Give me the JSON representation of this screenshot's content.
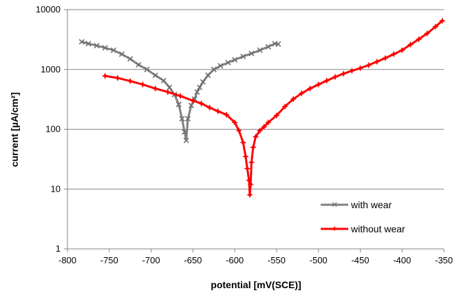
{
  "chart_data": {
    "type": "line",
    "title": "",
    "xlabel": "potential [mV(SCE)]",
    "ylabel": "current [µA/cm²]",
    "xlim": [
      -800,
      -350
    ],
    "ylim": [
      1,
      10000
    ],
    "y_scale": "log",
    "grid": "horizontal",
    "legend_position": "bottom-right",
    "x_ticks": [
      "-800",
      "-750",
      "-700",
      "-650",
      "-600",
      "-550",
      "-500",
      "-450",
      "-400",
      "-350"
    ],
    "y_ticks": [
      "1",
      "10",
      "100",
      "1000",
      "10000"
    ],
    "series": [
      {
        "name": "with wear",
        "color": "#808080",
        "marker": "x",
        "x": [
          -783,
          -775,
          -765,
          -755,
          -745,
          -735,
          -725,
          -715,
          -705,
          -695,
          -685,
          -678,
          -672,
          -667,
          -663,
          -660,
          -658,
          -656,
          -652,
          -648,
          -645,
          -642,
          -638,
          -632,
          -625,
          -617,
          -608,
          -600,
          -590,
          -580,
          -570,
          -560,
          -552,
          -548
        ],
        "y": [
          2900,
          2700,
          2500,
          2300,
          2100,
          1800,
          1500,
          1200,
          1000,
          800,
          650,
          500,
          380,
          260,
          150,
          90,
          65,
          150,
          250,
          320,
          420,
          500,
          620,
          800,
          1000,
          1150,
          1300,
          1450,
          1650,
          1850,
          2100,
          2400,
          2700,
          2650
        ]
      },
      {
        "name": "without wear",
        "color": "#ff0000",
        "marker": "star",
        "x": [
          -755,
          -740,
          -725,
          -710,
          -695,
          -680,
          -665,
          -650,
          -640,
          -630,
          -620,
          -610,
          -600,
          -595,
          -590,
          -587,
          -585,
          -583,
          -582,
          -581,
          -580,
          -578,
          -575,
          -570,
          -565,
          -560,
          -550,
          -540,
          -530,
          -520,
          -510,
          -500,
          -490,
          -480,
          -470,
          -460,
          -450,
          -440,
          -430,
          -420,
          -410,
          -400,
          -390,
          -380,
          -370,
          -360,
          -352
        ],
        "y": [
          780,
          720,
          640,
          560,
          480,
          420,
          360,
          300,
          270,
          230,
          200,
          175,
          130,
          95,
          60,
          35,
          22,
          14,
          8,
          12,
          28,
          50,
          75,
          95,
          110,
          130,
          170,
          240,
          320,
          400,
          480,
          560,
          650,
          750,
          850,
          950,
          1050,
          1180,
          1350,
          1550,
          1800,
          2100,
          2600,
          3200,
          4000,
          5200,
          6500
        ]
      }
    ]
  }
}
